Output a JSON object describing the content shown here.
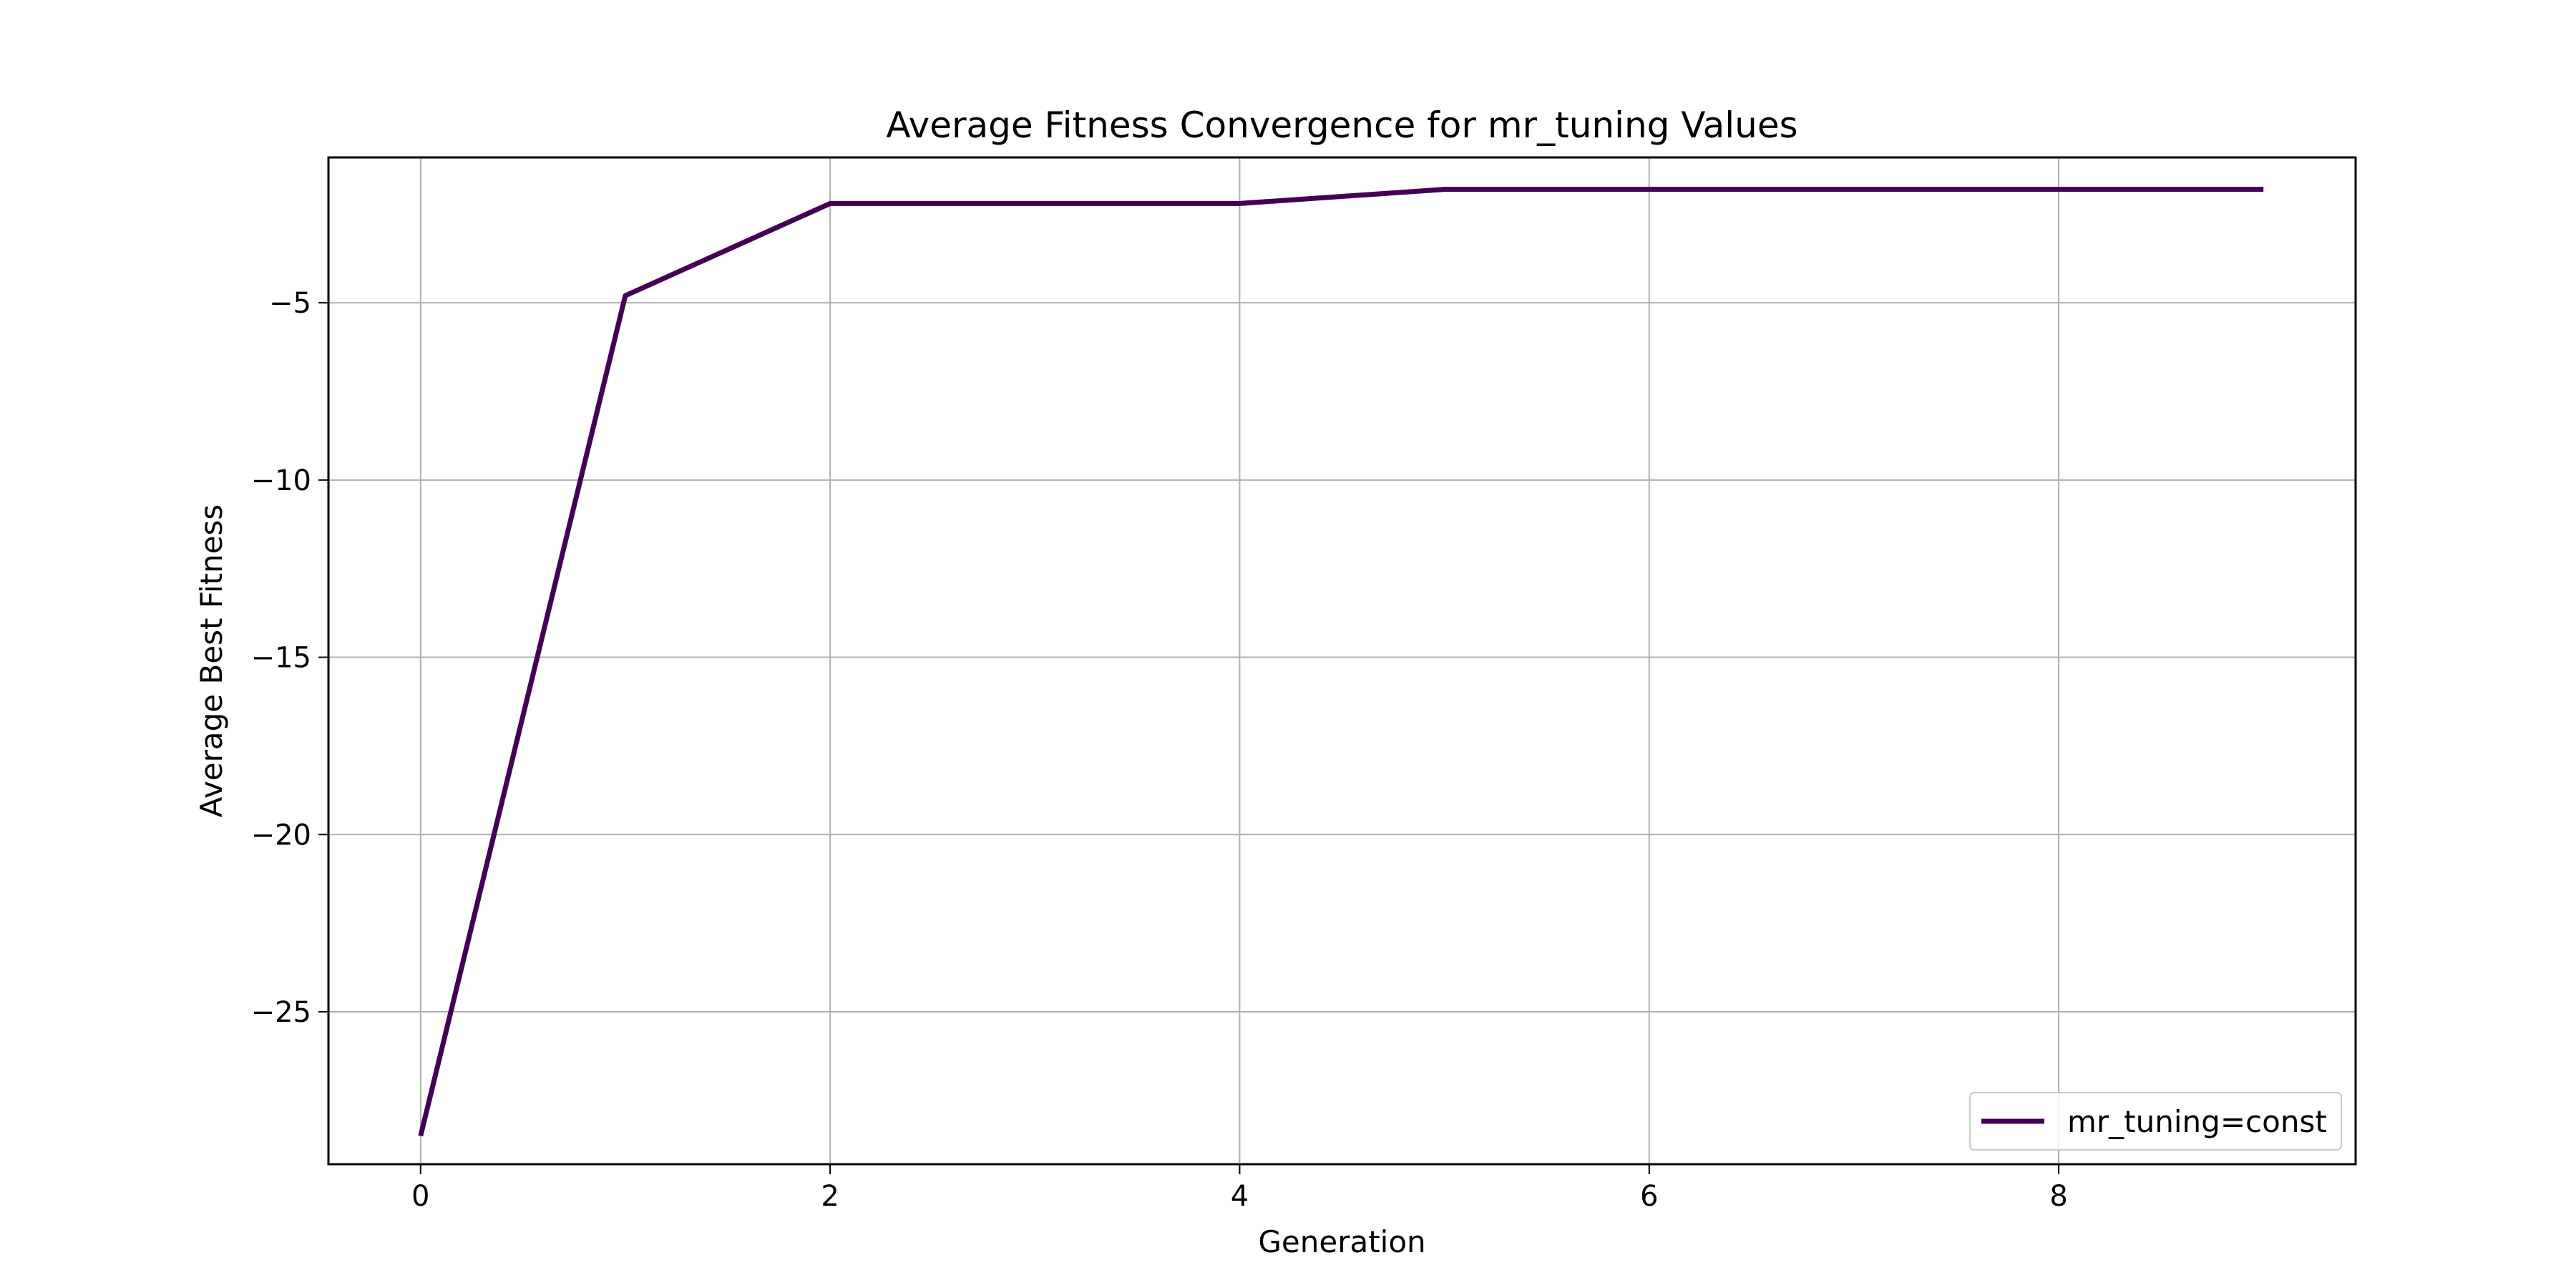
{
  "chart_data": {
    "type": "line",
    "title": "Average Fitness Convergence for mr_tuning Values",
    "xlabel": "Generation",
    "ylabel": "Average Best Fitness",
    "xlim": [
      -0.45,
      9.45
    ],
    "ylim": [
      -29.3,
      -0.9
    ],
    "xticks": [
      0,
      2,
      4,
      6,
      8
    ],
    "yticks": [
      -25,
      -20,
      -15,
      -10,
      -5
    ],
    "xtick_labels": [
      "0",
      "2",
      "4",
      "6",
      "8"
    ],
    "ytick_labels": [
      "−25",
      "−20",
      "−15",
      "−10",
      "−5"
    ],
    "grid": true,
    "legend_position": "lower-right",
    "series": [
      {
        "name": "mr_tuning=const",
        "color": "#440154",
        "x": [
          0,
          1,
          2,
          3,
          4,
          5,
          6,
          7,
          8,
          9
        ],
        "y": [
          -28.5,
          -4.8,
          -2.2,
          -2.2,
          -2.2,
          -1.8,
          -1.8,
          -1.8,
          -1.8,
          -1.8
        ]
      }
    ]
  }
}
